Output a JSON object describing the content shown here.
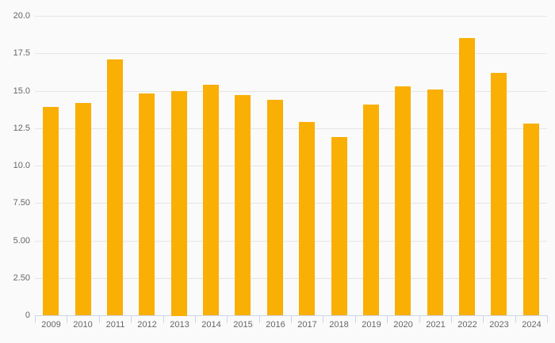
{
  "chart_data": {
    "type": "bar",
    "title": "",
    "categories": [
      "2009",
      "2010",
      "2011",
      "2012",
      "2013",
      "2014",
      "2015",
      "2016",
      "2017",
      "2018",
      "2019",
      "2020",
      "2021",
      "2022",
      "2023",
      "2024"
    ],
    "values": [
      13.9,
      14.2,
      17.1,
      14.8,
      15.0,
      15.4,
      14.7,
      14.4,
      12.9,
      11.9,
      14.1,
      15.3,
      15.1,
      18.5,
      16.2,
      12.8
    ],
    "xlabel": "",
    "ylabel": "",
    "ylim": [
      0,
      20
    ],
    "ytick_values": [
      0,
      2.5,
      5,
      7.5,
      10,
      12.5,
      15,
      17.5,
      20
    ],
    "ytick_labels": [
      "0",
      "2.50",
      "5.00",
      "7.50",
      "10.0",
      "12.5",
      "15.0",
      "17.5",
      "20.0"
    ],
    "grid": true,
    "legend": false,
    "colors": {
      "bar": "#FAAF05",
      "background": "#FAFAFA",
      "gridline": "#E6E6E6",
      "axis_line": "#CCD6EB",
      "tick": "#CCD6EB",
      "label_text": "#666666"
    }
  }
}
